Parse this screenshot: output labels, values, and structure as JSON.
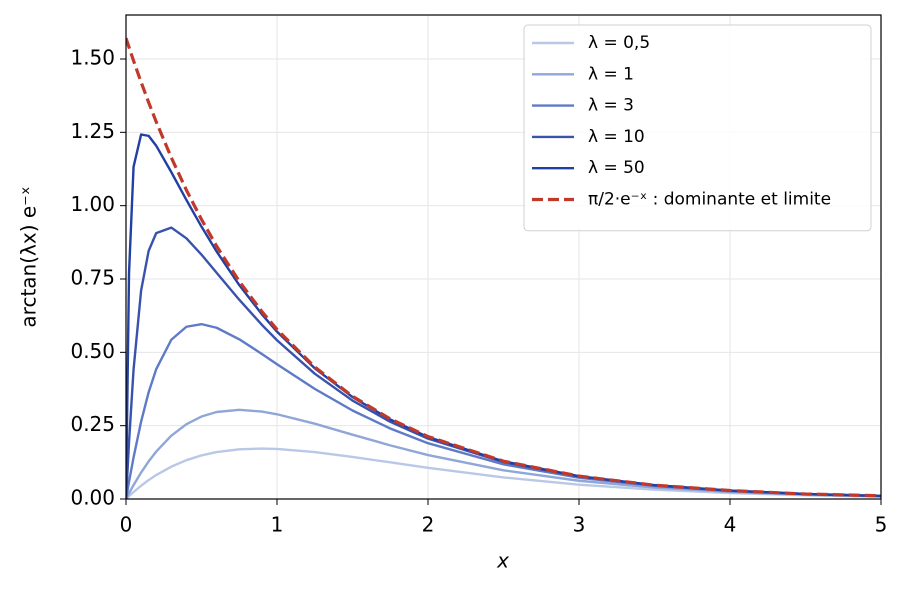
{
  "chart_data": {
    "type": "line",
    "x_label": "x",
    "y_label": "arctan(λx) e⁻ˣ",
    "x": [
      0,
      0.02,
      0.05,
      0.1,
      0.15,
      0.2,
      0.3,
      0.4,
      0.5,
      0.6,
      0.75,
      0.9,
      1,
      1.25,
      1.5,
      1.75,
      2,
      2.5,
      3,
      3.5,
      4,
      4.5,
      5
    ],
    "series": [
      {
        "name": "λ = 0,5",
        "color": "#b9c8e7",
        "linestyle": "solid",
        "values": [
          0,
          0.0098,
          0.0238,
          0.0452,
          0.0645,
          0.0816,
          0.1103,
          0.1323,
          0.1486,
          0.16,
          0.1695,
          0.1719,
          0.1706,
          0.16,
          0.1436,
          0.1249,
          0.1063,
          0.0736,
          0.0489,
          0.0318,
          0.0203,
          0.0128,
          0.008
        ]
      },
      {
        "name": "λ = 1",
        "color": "#8fa6d8",
        "linestyle": "solid",
        "values": [
          0,
          0.0196,
          0.0475,
          0.0902,
          0.1282,
          0.1616,
          0.2159,
          0.2551,
          0.2812,
          0.2966,
          0.304,
          0.298,
          0.2889,
          0.2567,
          0.2193,
          0.1828,
          0.1498,
          0.0977,
          0.0622,
          0.039,
          0.0243,
          0.015,
          0.0092
        ]
      },
      {
        "name": "λ = 3",
        "color": "#5f7ac6",
        "linestyle": "solid",
        "values": [
          0,
          0.0587,
          0.1416,
          0.2637,
          0.364,
          0.4424,
          0.5429,
          0.5872,
          0.5961,
          0.5838,
          0.5445,
          0.4945,
          0.4595,
          0.3754,
          0.3017,
          0.2403,
          0.1902,
          0.1181,
          0.0727,
          0.0446,
          0.0272,
          0.0166,
          0.0101
        ]
      },
      {
        "name": "λ = 10",
        "color": "#3952ac",
        "linestyle": "solid",
        "values": [
          0,
          0.1935,
          0.441,
          0.7106,
          0.8459,
          0.9064,
          0.9253,
          0.8887,
          0.833,
          0.7714,
          0.6794,
          0.5937,
          0.5412,
          0.4272,
          0.3356,
          0.2631,
          0.2058,
          0.1257,
          0.0766,
          0.0466,
          0.0283,
          0.0172,
          0.0104
        ]
      },
      {
        "name": "λ = 50",
        "color": "#2140a3",
        "linestyle": "solid",
        "values": [
          0,
          0.7698,
          1.1322,
          1.2426,
          1.2379,
          1.2044,
          1.1143,
          1.0194,
          0.9284,
          0.8438,
          0.7294,
          0.6297,
          0.5705,
          0.4455,
          0.3475,
          0.271,
          0.2112,
          0.1283,
          0.0779,
          0.0473,
          0.0287,
          0.0174,
          0.0105
        ]
      },
      {
        "name": "π/2·e⁻ˣ : dominante et limite",
        "color": "#c0392b",
        "linestyle": "dashed",
        "values": [
          1.571,
          1.54,
          1.494,
          1.421,
          1.352,
          1.286,
          1.164,
          1.053,
          0.953,
          0.862,
          0.742,
          0.639,
          0.578,
          0.45,
          0.35,
          0.273,
          0.213,
          0.129,
          0.078,
          0.047,
          0.029,
          0.017,
          0.011
        ]
      }
    ],
    "xlim": [
      0,
      5
    ],
    "xticks": [
      0,
      1,
      2,
      3,
      4,
      5
    ],
    "ylim": [
      0,
      1.65
    ],
    "yticks": [
      {
        "value": 0,
        "label": "0.00"
      },
      {
        "value": 0.25,
        "label": "0.25"
      },
      {
        "value": 0.5,
        "label": "0.50"
      },
      {
        "value": 0.75,
        "label": "0.75"
      },
      {
        "value": 1,
        "label": "1.00"
      },
      {
        "value": 1.25,
        "label": "1.25"
      },
      {
        "value": 1.5,
        "label": "1.50"
      }
    ],
    "grid": true,
    "legend": "upper-right"
  }
}
